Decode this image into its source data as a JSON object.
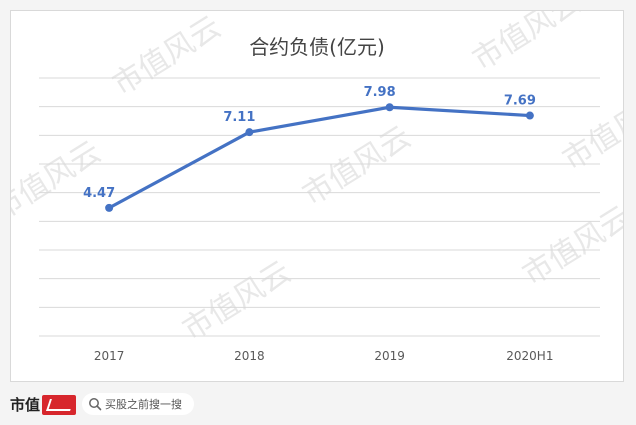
{
  "chart_data": {
    "type": "line",
    "title": "合约负债(亿元)",
    "categories": [
      "2017",
      "2018",
      "2019",
      "2020H1"
    ],
    "series": [
      {
        "values": [
          4.47,
          7.11,
          7.98,
          7.69
        ]
      }
    ],
    "data_labels": [
      "4.47",
      "7.11",
      "7.98",
      "7.69"
    ],
    "ylim": [
      0,
      9
    ],
    "y_tick_step": 1,
    "grid": true,
    "legend": "none",
    "color": "#4472c4"
  },
  "footer": {
    "brand": "市值",
    "search_text": "买股之前搜一搜"
  },
  "watermark": "市值风云"
}
